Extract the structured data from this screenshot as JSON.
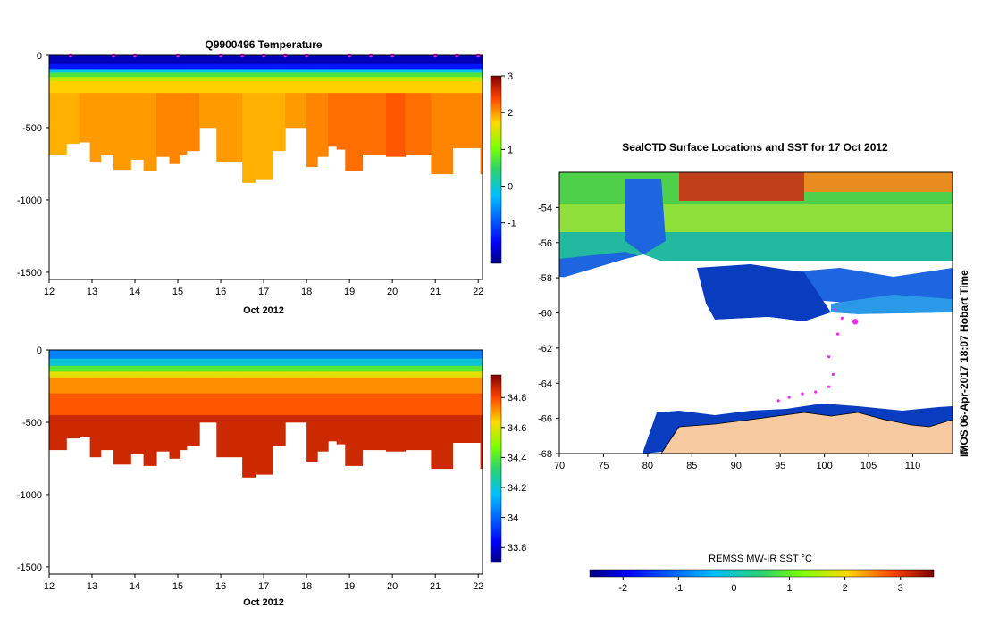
{
  "chart_data": [
    {
      "type": "heatmap",
      "id": "temperature_section",
      "title": "Q9900496  Temperature",
      "xlabel": "Oct 2012",
      "ylabel": "",
      "x_ticks": [
        "12",
        "13",
        "14",
        "15",
        "16",
        "17",
        "18",
        "19",
        "20",
        "21",
        "22"
      ],
      "x_range": [
        12,
        22.1
      ],
      "y_ticks": [
        "0",
        "-500",
        "-1000",
        "-1500"
      ],
      "y_range": [
        -1550,
        0
      ],
      "colorbar": {
        "min": -2.1,
        "max": 3,
        "ticks": [
          "3",
          "2",
          "1",
          "0",
          "-1"
        ]
      },
      "profiles": [
        {
          "t0": 12.0,
          "t1": 12.4,
          "depth": 690,
          "deep_temp": 1.9
        },
        {
          "t0": 12.4,
          "t1": 12.7,
          "depth": 610,
          "deep_temp": 1.9
        },
        {
          "t0": 12.7,
          "t1": 12.95,
          "depth": 600,
          "deep_temp": 2.0
        },
        {
          "t0": 12.95,
          "t1": 13.2,
          "depth": 740,
          "deep_temp": 2.0
        },
        {
          "t0": 13.2,
          "t1": 13.5,
          "depth": 690,
          "deep_temp": 2.0
        },
        {
          "t0": 13.5,
          "t1": 13.9,
          "depth": 790,
          "deep_temp": 2.0
        },
        {
          "t0": 13.9,
          "t1": 14.2,
          "depth": 720,
          "deep_temp": 2.0
        },
        {
          "t0": 14.2,
          "t1": 14.5,
          "depth": 800,
          "deep_temp": 2.0
        },
        {
          "t0": 14.5,
          "t1": 14.8,
          "depth": 700,
          "deep_temp": 2.1
        },
        {
          "t0": 14.8,
          "t1": 15.05,
          "depth": 750,
          "deep_temp": 2.1
        },
        {
          "t0": 15.05,
          "t1": 15.2,
          "depth": 690,
          "deep_temp": 2.1
        },
        {
          "t0": 15.2,
          "t1": 15.5,
          "depth": 660,
          "deep_temp": 2.1
        },
        {
          "t0": 15.5,
          "t1": 15.9,
          "depth": 500,
          "deep_temp": 2.0
        },
        {
          "t0": 15.9,
          "t1": 16.5,
          "depth": 740,
          "deep_temp": 2.0
        },
        {
          "t0": 16.5,
          "t1": 16.8,
          "depth": 880,
          "deep_temp": 1.9
        },
        {
          "t0": 16.8,
          "t1": 17.2,
          "depth": 860,
          "deep_temp": 1.9
        },
        {
          "t0": 17.2,
          "t1": 17.5,
          "depth": 660,
          "deep_temp": 1.9
        },
        {
          "t0": 17.5,
          "t1": 18.0,
          "depth": 500,
          "deep_temp": 2.0
        },
        {
          "t0": 18.0,
          "t1": 18.25,
          "depth": 770,
          "deep_temp": 2.1
        },
        {
          "t0": 18.25,
          "t1": 18.5,
          "depth": 700,
          "deep_temp": 2.1
        },
        {
          "t0": 18.5,
          "t1": 18.7,
          "depth": 630,
          "deep_temp": 2.2
        },
        {
          "t0": 18.7,
          "t1": 18.9,
          "depth": 650,
          "deep_temp": 2.2
        },
        {
          "t0": 18.9,
          "t1": 19.3,
          "depth": 800,
          "deep_temp": 2.2
        },
        {
          "t0": 19.3,
          "t1": 19.85,
          "depth": 690,
          "deep_temp": 2.2
        },
        {
          "t0": 19.85,
          "t1": 20.3,
          "depth": 700,
          "deep_temp": 2.3
        },
        {
          "t0": 20.3,
          "t1": 20.9,
          "depth": 690,
          "deep_temp": 2.2
        },
        {
          "t0": 20.9,
          "t1": 21.4,
          "depth": 820,
          "deep_temp": 2.1
        },
        {
          "t0": 21.4,
          "t1": 22.05,
          "depth": 640,
          "deep_temp": 2.1
        },
        {
          "t0": 22.05,
          "t1": 22.1,
          "depth": 820,
          "deep_temp": 2.1
        }
      ],
      "surface_marker_days": [
        12.5,
        13.5,
        14.0,
        15.0,
        16.0,
        16.5,
        17.0,
        17.5,
        18.0,
        19.0,
        19.5,
        20.0,
        21.0,
        21.5,
        22.0
      ]
    },
    {
      "type": "heatmap",
      "id": "salinity_section",
      "title": "",
      "xlabel": "Oct 2012",
      "x_ticks": [
        "12",
        "13",
        "14",
        "15",
        "16",
        "17",
        "18",
        "19",
        "20",
        "21",
        "22"
      ],
      "x_range": [
        12,
        22.1
      ],
      "y_ticks": [
        "0",
        "-500",
        "-1000",
        "-1500"
      ],
      "y_range": [
        -1550,
        0
      ],
      "colorbar": {
        "min": 33.7,
        "max": 34.95,
        "ticks": [
          "34.8",
          "34.6",
          "34.4",
          "34.2",
          "34",
          "33.8"
        ]
      }
    },
    {
      "type": "heatmap",
      "id": "sst_map",
      "title": "SealCTD Surface Locations and SST for 17 Oct 2012",
      "x_ticks": [
        "70",
        "75",
        "80",
        "85",
        "90",
        "95",
        "100",
        "105",
        "110"
      ],
      "x_range": [
        70,
        114.5
      ],
      "y_ticks": [
        "-54",
        "-56",
        "-58",
        "-60",
        "-62",
        "-64",
        "-66",
        "-68"
      ],
      "y_range": [
        -68,
        -52
      ],
      "colorbar": {
        "label": "REMSS MW-IR SST °C",
        "min": -2.6,
        "max": 3.6,
        "ticks": [
          "-2",
          "-1",
          "0",
          "1",
          "2",
          "3"
        ]
      },
      "credit": "IMOS 06-Apr-2017 18:07 Hobart Time",
      "copyright_symbol": "©",
      "seal_track": [
        [
          101.2,
          -59.8
        ],
        [
          102.0,
          -60.3
        ],
        [
          103.5,
          -60.5
        ],
        [
          101.5,
          -61.2
        ],
        [
          100.5,
          -62.5
        ],
        [
          101.0,
          -63.5
        ],
        [
          100.5,
          -64.2
        ],
        [
          99.0,
          -64.5
        ],
        [
          97.5,
          -64.6
        ],
        [
          96.0,
          -64.8
        ],
        [
          94.8,
          -65.0
        ]
      ]
    }
  ],
  "colors": {
    "axis": "#000000",
    "ice_land": "#f7c9a0",
    "marker": "#ff22ff",
    "background": "#ffffff"
  }
}
